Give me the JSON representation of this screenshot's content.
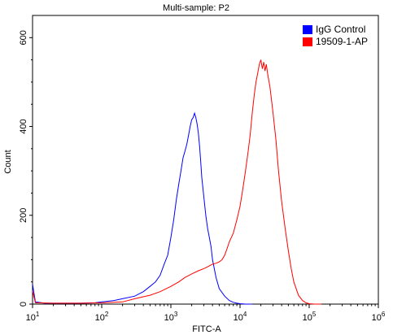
{
  "chart_data": {
    "type": "line",
    "title": "Multi-sample: P2",
    "xlabel": "FITC-A",
    "ylabel": "Count",
    "x_scale": "log",
    "xlim": [
      10,
      1000000
    ],
    "ylim": [
      0,
      650
    ],
    "x_ticks": [
      {
        "base": "10",
        "exp": "1"
      },
      {
        "base": "10",
        "exp": "2"
      },
      {
        "base": "10",
        "exp": "3"
      },
      {
        "base": "10",
        "exp": "4"
      },
      {
        "base": "10",
        "exp": "5"
      },
      {
        "base": "10",
        "exp": "6"
      }
    ],
    "x_tick_values": [
      10,
      100,
      1000,
      10000,
      100000,
      1000000
    ],
    "y_ticks": [
      "0",
      "200",
      "400",
      "600"
    ],
    "y_tick_values": [
      0,
      200,
      400,
      600
    ],
    "legend_position": "top-right",
    "series": [
      {
        "name": "IgG Control",
        "color": "#0000ff",
        "x": [
          10,
          11,
          15,
          20,
          30,
          50,
          80,
          100,
          150,
          200,
          300,
          400,
          500,
          600,
          700,
          800,
          900,
          1000,
          1100,
          1200,
          1300,
          1400,
          1500,
          1600,
          1700,
          1800,
          1900,
          2000,
          2100,
          2200,
          2300,
          2400,
          2500,
          2600,
          2700,
          2800,
          3000,
          3200,
          3400,
          3600,
          3800,
          4000,
          4500,
          5000,
          6000,
          7000,
          8000,
          9000,
          10000,
          12000,
          15000
        ],
        "y": [
          45,
          5,
          2,
          2,
          2,
          2,
          3,
          5,
          8,
          12,
          18,
          28,
          40,
          50,
          65,
          90,
          110,
          150,
          190,
          235,
          270,
          300,
          330,
          345,
          360,
          380,
          400,
          415,
          420,
          430,
          420,
          405,
          385,
          355,
          320,
          285,
          240,
          200,
          170,
          150,
          130,
          100,
          60,
          35,
          18,
          8,
          4,
          2,
          1,
          0,
          0
        ]
      },
      {
        "name": "19509-1-AP",
        "color": "#ff0000",
        "x": [
          10,
          11,
          20,
          50,
          100,
          200,
          300,
          500,
          700,
          1000,
          1300,
          1600,
          2000,
          2500,
          3000,
          3500,
          4000,
          4500,
          5000,
          5500,
          6000,
          6500,
          7000,
          8000,
          9000,
          10000,
          11000,
          12000,
          13000,
          14000,
          15000,
          16000,
          17000,
          18000,
          19000,
          20000,
          21000,
          22000,
          23000,
          24000,
          25000,
          27000,
          30000,
          33000,
          36000,
          40000,
          45000,
          50000,
          55000,
          60000,
          70000,
          80000,
          90000,
          100000,
          120000,
          150000
        ],
        "y": [
          30,
          3,
          2,
          2,
          3,
          5,
          12,
          20,
          28,
          40,
          50,
          60,
          68,
          75,
          80,
          85,
          90,
          92,
          95,
          100,
          110,
          125,
          140,
          160,
          190,
          220,
          260,
          300,
          340,
          380,
          430,
          470,
          500,
          520,
          540,
          550,
          530,
          545,
          525,
          540,
          520,
          490,
          430,
          370,
          300,
          230,
          170,
          120,
          80,
          50,
          20,
          8,
          3,
          1,
          0,
          0
        ]
      }
    ]
  },
  "colors": {
    "axis": "#000000",
    "background": "#ffffff"
  }
}
